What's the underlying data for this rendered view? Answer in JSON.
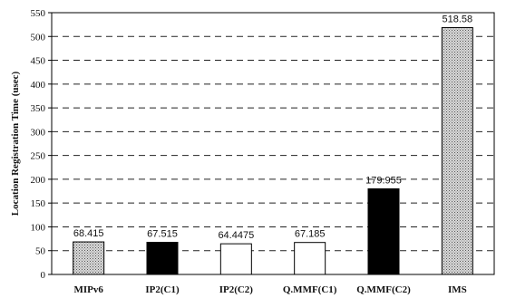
{
  "chart_data": {
    "type": "bar",
    "categories": [
      "MIPv6",
      "IP2(C1)",
      "IP2(C2)",
      "Q.MMF(C1)",
      "Q.MMF(C2)",
      "IMS"
    ],
    "values": [
      68.415,
      67.515,
      64.4475,
      67.185,
      179.955,
      518.58
    ],
    "data_labels": [
      "68.415",
      "67.515",
      "64.4475",
      "67.185",
      "179.955",
      "518.58"
    ],
    "fills": [
      "dotted",
      "black",
      "white",
      "white",
      "black",
      "dotted"
    ],
    "ylabel": "Location Registration Time (usec)",
    "xlabel": "",
    "ylim": [
      0,
      550
    ],
    "yticks": [
      0,
      50,
      100,
      150,
      200,
      250,
      300,
      350,
      400,
      450,
      500,
      550
    ],
    "grid": "horizontal dashed",
    "legend": "none"
  }
}
